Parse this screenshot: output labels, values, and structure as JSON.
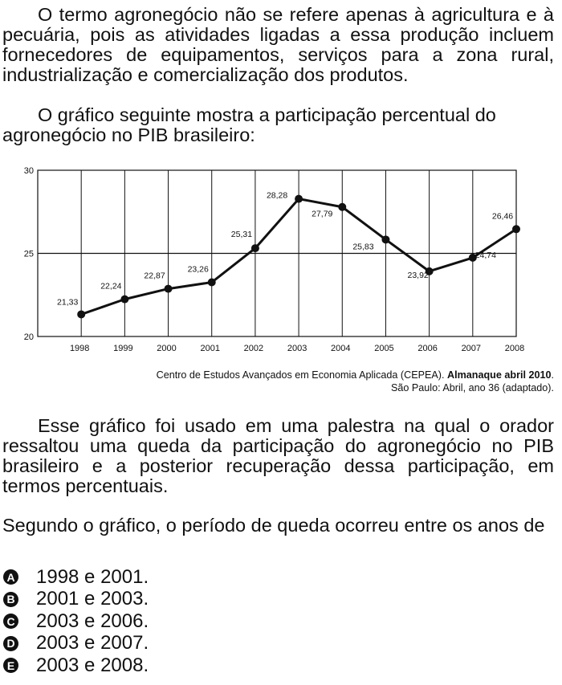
{
  "intro": {
    "paragraph1": "O termo agronegócio não se refere apenas à agricultura e à pecuária, pois as atividades ligadas a essa produção incluem fornecedores de equipamentos, serviços para a zona rural, industrialização e comercialização dos produtos.",
    "paragraph2": "O gráfico seguinte mostra a participação percentual do agronegócio no PIB brasileiro:"
  },
  "chart_data": {
    "type": "line",
    "title": "",
    "xlabel": "",
    "ylabel": "",
    "x": [
      "1998",
      "1999",
      "2000",
      "2001",
      "2002",
      "2003",
      "2004",
      "2005",
      "2006",
      "2007",
      "2008"
    ],
    "series": [
      {
        "values": [
          21.33,
          22.24,
          22.87,
          23.26,
          25.31,
          28.28,
          27.79,
          25.83,
          23.92,
          24.74,
          26.46
        ]
      }
    ],
    "data_labels": [
      "21,33",
      "22,24",
      "22,87",
      "23,26",
      "25,31",
      "28,28",
      "27,79",
      "25,83",
      "23,92",
      "24,74",
      "26,46"
    ],
    "yticks": [
      "20",
      "25",
      "30"
    ],
    "ylim": [
      20,
      30
    ],
    "grid": true,
    "line_color": "#111111"
  },
  "source": {
    "text": "Centro de Estudos Avançados em Economia Aplicada (CEPEA).",
    "bold": "Almanaque abril 2010",
    "end": ".",
    "line2": "São Paulo: Abril, ano 36 (adaptado)."
  },
  "question": {
    "paragraph3": "Esse gráfico foi usado em uma palestra na qual o orador ressaltou uma queda da participação do agronegócio no PIB brasileiro e a posterior recuperação dessa participação, em termos percentuais.",
    "prompt": "Segundo o gráfico, o período de queda ocorreu entre os anos de"
  },
  "options": [
    {
      "letter": "A",
      "text": "1998 e 2001."
    },
    {
      "letter": "B",
      "text": "2001 e 2003."
    },
    {
      "letter": "C",
      "text": "2003 e 2006."
    },
    {
      "letter": "D",
      "text": "2003 e 2007."
    },
    {
      "letter": "E",
      "text": "2003 e 2008."
    }
  ]
}
